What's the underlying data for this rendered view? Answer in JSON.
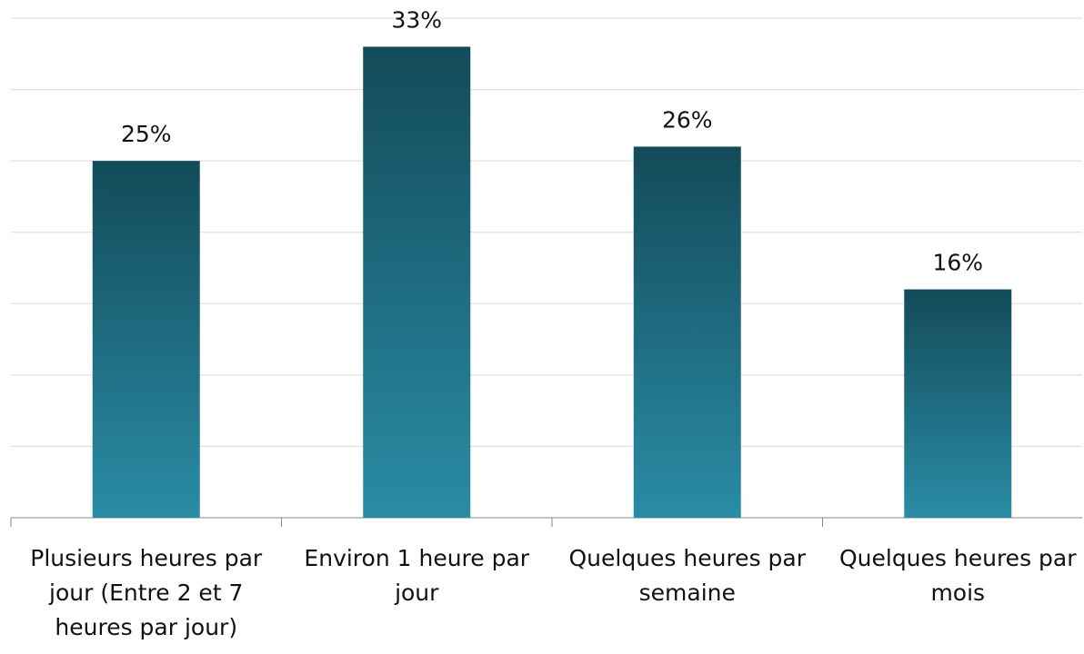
{
  "chart_data": {
    "type": "bar",
    "categories": [
      "Plusieurs heures par jour (Entre 2 et 7 heures par jour)",
      "Environ 1 heure par jour",
      "Quelques heures par semaine",
      "Quelques heures par mois"
    ],
    "values": [
      25,
      33,
      26,
      16
    ],
    "value_labels": [
      "25%",
      "33%",
      "26%",
      "16%"
    ],
    "color": "#1f6b80",
    "ylim": [
      0,
      35
    ],
    "yticks": [
      0,
      5,
      10,
      15,
      20,
      25,
      30,
      35
    ],
    "grid": true
  }
}
